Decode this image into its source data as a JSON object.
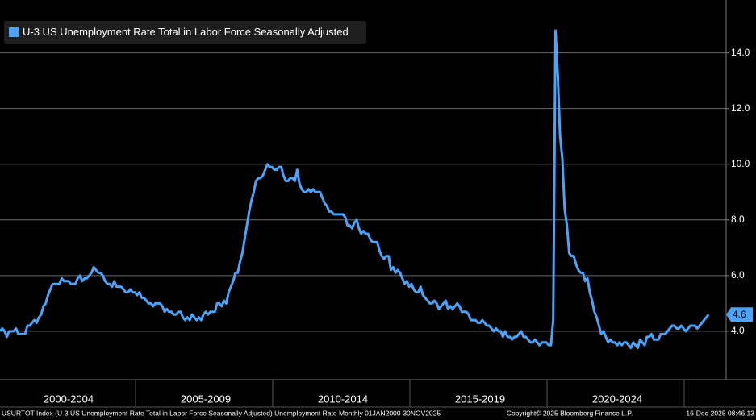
{
  "chart_data": {
    "type": "line",
    "categories": [
      "2000-2004",
      "2005-2009",
      "2010-2014",
      "2015-2019",
      "2020-2024"
    ],
    "x": [
      "2000-01",
      "2000-02",
      "2000-03",
      "2000-04",
      "2000-05",
      "2000-06",
      "2000-07",
      "2000-08",
      "2000-09",
      "2000-10",
      "2000-11",
      "2000-12",
      "2001-01",
      "2001-02",
      "2001-03",
      "2001-04",
      "2001-05",
      "2001-06",
      "2001-07",
      "2001-08",
      "2001-09",
      "2001-10",
      "2001-11",
      "2001-12",
      "2002-01",
      "2002-02",
      "2002-03",
      "2002-04",
      "2002-05",
      "2002-06",
      "2002-07",
      "2002-08",
      "2002-09",
      "2002-10",
      "2002-11",
      "2002-12",
      "2003-01",
      "2003-02",
      "2003-03",
      "2003-04",
      "2003-05",
      "2003-06",
      "2003-07",
      "2003-08",
      "2003-09",
      "2003-10",
      "2003-11",
      "2003-12",
      "2004-01",
      "2004-02",
      "2004-03",
      "2004-04",
      "2004-05",
      "2004-06",
      "2004-07",
      "2004-08",
      "2004-09",
      "2004-10",
      "2004-11",
      "2004-12",
      "2005-01",
      "2005-02",
      "2005-03",
      "2005-04",
      "2005-05",
      "2005-06",
      "2005-07",
      "2005-08",
      "2005-09",
      "2005-10",
      "2005-11",
      "2005-12",
      "2006-01",
      "2006-02",
      "2006-03",
      "2006-04",
      "2006-05",
      "2006-06",
      "2006-07",
      "2006-08",
      "2006-09",
      "2006-10",
      "2006-11",
      "2006-12",
      "2007-01",
      "2007-02",
      "2007-03",
      "2007-04",
      "2007-05",
      "2007-06",
      "2007-07",
      "2007-08",
      "2007-09",
      "2007-10",
      "2007-11",
      "2007-12",
      "2008-01",
      "2008-02",
      "2008-03",
      "2008-04",
      "2008-05",
      "2008-06",
      "2008-07",
      "2008-08",
      "2008-09",
      "2008-10",
      "2008-11",
      "2008-12",
      "2009-01",
      "2009-02",
      "2009-03",
      "2009-04",
      "2009-05",
      "2009-06",
      "2009-07",
      "2009-08",
      "2009-09",
      "2009-10",
      "2009-11",
      "2009-12",
      "2010-01",
      "2010-02",
      "2010-03",
      "2010-04",
      "2010-05",
      "2010-06",
      "2010-07",
      "2010-08",
      "2010-09",
      "2010-10",
      "2010-11",
      "2010-12",
      "2011-01",
      "2011-02",
      "2011-03",
      "2011-04",
      "2011-05",
      "2011-06",
      "2011-07",
      "2011-08",
      "2011-09",
      "2011-10",
      "2011-11",
      "2011-12",
      "2012-01",
      "2012-02",
      "2012-03",
      "2012-04",
      "2012-05",
      "2012-06",
      "2012-07",
      "2012-08",
      "2012-09",
      "2012-10",
      "2012-11",
      "2012-12",
      "2013-01",
      "2013-02",
      "2013-03",
      "2013-04",
      "2013-05",
      "2013-06",
      "2013-07",
      "2013-08",
      "2013-09",
      "2013-10",
      "2013-11",
      "2013-12",
      "2014-01",
      "2014-02",
      "2014-03",
      "2014-04",
      "2014-05",
      "2014-06",
      "2014-07",
      "2014-08",
      "2014-09",
      "2014-10",
      "2014-11",
      "2014-12",
      "2015-01",
      "2015-02",
      "2015-03",
      "2015-04",
      "2015-05",
      "2015-06",
      "2015-07",
      "2015-08",
      "2015-09",
      "2015-10",
      "2015-11",
      "2015-12",
      "2016-01",
      "2016-02",
      "2016-03",
      "2016-04",
      "2016-05",
      "2016-06",
      "2016-07",
      "2016-08",
      "2016-09",
      "2016-10",
      "2016-11",
      "2016-12",
      "2017-01",
      "2017-02",
      "2017-03",
      "2017-04",
      "2017-05",
      "2017-06",
      "2017-07",
      "2017-08",
      "2017-09",
      "2017-10",
      "2017-11",
      "2017-12",
      "2018-01",
      "2018-02",
      "2018-03",
      "2018-04",
      "2018-05",
      "2018-06",
      "2018-07",
      "2018-08",
      "2018-09",
      "2018-10",
      "2018-11",
      "2018-12",
      "2019-01",
      "2019-02",
      "2019-03",
      "2019-04",
      "2019-05",
      "2019-06",
      "2019-07",
      "2019-08",
      "2019-09",
      "2019-10",
      "2019-11",
      "2019-12",
      "2020-01",
      "2020-02",
      "2020-03",
      "2020-04",
      "2020-05",
      "2020-06",
      "2020-07",
      "2020-08",
      "2020-09",
      "2020-10",
      "2020-11",
      "2020-12",
      "2021-01",
      "2021-02",
      "2021-03",
      "2021-04",
      "2021-05",
      "2021-06",
      "2021-07",
      "2021-08",
      "2021-09",
      "2021-10",
      "2021-11",
      "2021-12",
      "2022-01",
      "2022-02",
      "2022-03",
      "2022-04",
      "2022-05",
      "2022-06",
      "2022-07",
      "2022-08",
      "2022-09",
      "2022-10",
      "2022-11",
      "2022-12",
      "2023-01",
      "2023-02",
      "2023-03",
      "2023-04",
      "2023-05",
      "2023-06",
      "2023-07",
      "2023-08",
      "2023-09",
      "2023-10",
      "2023-11",
      "2023-12",
      "2024-01",
      "2024-02",
      "2024-03",
      "2024-04",
      "2024-05",
      "2024-06",
      "2024-07",
      "2024-08",
      "2024-09",
      "2024-10",
      "2024-11",
      "2024-12",
      "2025-01",
      "2025-02",
      "2025-03",
      "2025-04",
      "2025-05",
      "2025-06",
      "2025-07",
      "2025-08",
      "2025-09",
      "2025-11"
    ],
    "series": [
      {
        "name": "U-3 US Unemployment Rate Total in Labor Force Seasonally Adjusted",
        "color": "#4da3f7",
        "values": [
          4.0,
          4.1,
          4.0,
          3.8,
          4.0,
          4.0,
          4.0,
          4.1,
          3.9,
          3.9,
          3.9,
          3.9,
          4.2,
          4.2,
          4.3,
          4.4,
          4.3,
          4.5,
          4.6,
          4.9,
          5.0,
          5.3,
          5.5,
          5.7,
          5.7,
          5.7,
          5.7,
          5.9,
          5.8,
          5.8,
          5.8,
          5.7,
          5.7,
          5.7,
          5.9,
          6.0,
          5.8,
          5.9,
          5.9,
          6.0,
          6.1,
          6.3,
          6.2,
          6.1,
          6.1,
          6.0,
          5.8,
          5.7,
          5.7,
          5.6,
          5.8,
          5.6,
          5.6,
          5.6,
          5.5,
          5.4,
          5.4,
          5.5,
          5.4,
          5.4,
          5.3,
          5.4,
          5.2,
          5.2,
          5.1,
          5.0,
          5.0,
          4.9,
          5.0,
          5.0,
          5.0,
          4.9,
          4.7,
          4.8,
          4.7,
          4.7,
          4.6,
          4.6,
          4.7,
          4.7,
          4.5,
          4.4,
          4.5,
          4.4,
          4.6,
          4.5,
          4.4,
          4.5,
          4.4,
          4.6,
          4.7,
          4.6,
          4.7,
          4.7,
          4.7,
          5.0,
          5.0,
          4.9,
          5.1,
          5.0,
          5.4,
          5.6,
          5.8,
          6.1,
          6.1,
          6.5,
          6.8,
          7.3,
          7.8,
          8.3,
          8.7,
          9.0,
          9.4,
          9.5,
          9.5,
          9.6,
          9.8,
          10.0,
          9.9,
          9.9,
          9.8,
          9.8,
          9.9,
          9.9,
          9.6,
          9.4,
          9.4,
          9.5,
          9.5,
          9.4,
          9.8,
          9.3,
          9.1,
          9.0,
          9.0,
          9.1,
          9.0,
          9.1,
          9.0,
          9.0,
          9.0,
          8.8,
          8.6,
          8.5,
          8.3,
          8.3,
          8.2,
          8.2,
          8.2,
          8.2,
          8.2,
          8.1,
          7.8,
          7.8,
          7.7,
          7.9,
          8.0,
          7.7,
          7.5,
          7.6,
          7.5,
          7.5,
          7.3,
          7.2,
          7.2,
          7.2,
          6.9,
          6.7,
          6.6,
          6.7,
          6.7,
          6.2,
          6.3,
          6.1,
          6.2,
          6.1,
          5.9,
          5.7,
          5.8,
          5.6,
          5.7,
          5.5,
          5.4,
          5.4,
          5.6,
          5.3,
          5.2,
          5.1,
          5.0,
          5.0,
          5.1,
          5.0,
          4.8,
          4.9,
          5.0,
          5.1,
          4.8,
          4.9,
          4.8,
          4.9,
          5.0,
          4.9,
          4.7,
          4.7,
          4.7,
          4.6,
          4.4,
          4.4,
          4.4,
          4.3,
          4.3,
          4.4,
          4.3,
          4.2,
          4.2,
          4.1,
          4.0,
          4.1,
          4.0,
          4.0,
          3.8,
          4.0,
          3.8,
          3.8,
          3.7,
          3.8,
          3.8,
          3.9,
          4.0,
          3.8,
          3.8,
          3.7,
          3.6,
          3.6,
          3.7,
          3.6,
          3.5,
          3.6,
          3.6,
          3.6,
          3.5,
          3.5,
          4.4,
          14.8,
          13.2,
          11.0,
          10.2,
          8.4,
          7.8,
          6.8,
          6.7,
          6.7,
          6.4,
          6.2,
          6.1,
          6.1,
          5.8,
          5.9,
          5.4,
          5.1,
          4.7,
          4.5,
          4.2,
          3.9,
          4.0,
          3.8,
          3.6,
          3.7,
          3.6,
          3.6,
          3.5,
          3.6,
          3.5,
          3.6,
          3.6,
          3.5,
          3.4,
          3.6,
          3.5,
          3.4,
          3.7,
          3.6,
          3.5,
          3.8,
          3.8,
          3.9,
          3.7,
          3.7,
          3.7,
          3.9,
          3.9,
          3.9,
          4.0,
          4.1,
          4.2,
          4.2,
          4.1,
          4.1,
          4.2,
          4.1,
          4.0,
          4.1,
          4.2,
          4.2,
          4.2,
          4.1,
          4.2,
          4.3,
          4.4,
          4.6
        ]
      }
    ],
    "ylim": [
      2.26,
      15.9
    ],
    "yticks": [
      {
        "value": 4,
        "label": "4.0"
      },
      {
        "value": 6,
        "label": "6.0"
      },
      {
        "value": 8,
        "label": "8.0"
      },
      {
        "value": 10,
        "label": "10.0"
      },
      {
        "value": 12,
        "label": "12.0"
      },
      {
        "value": 14,
        "label": "14.0"
      }
    ],
    "grid": true,
    "legend": "top-left",
    "footer": {
      "source": "USURTOT Index (U-3 US Unemployment Rate Total in Labor Force Seasonally Adjusted) Unemployment Rate Monthly 01JAN2000-30NOV2025",
      "copyright": "Copyright© 2025 Bloomberg Finance L.P.",
      "timestamp": "16-Dec-2025 08:46:13"
    }
  }
}
